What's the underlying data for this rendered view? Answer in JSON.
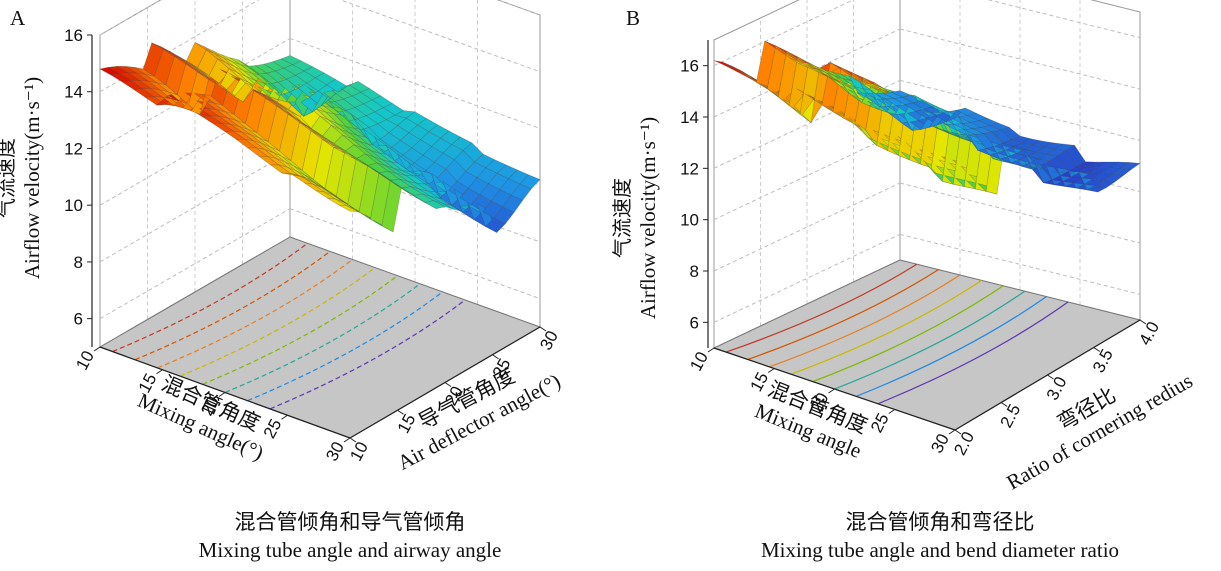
{
  "figure": {
    "panels": [
      {
        "label": "A",
        "caption_cn": "混合管倾角和导气管倾角",
        "caption_en": "Mixing tube angle and airway angle",
        "zlabel_cn": "气流速度",
        "zlabel_en": "Airflow velocity(m·s⁻¹)",
        "xlabel_cn": "混合管角度",
        "xlabel_en": "Mixing angle(°)",
        "ylabel_cn": "导气管角度",
        "ylabel_en": "Air deflector angle(°)",
        "x_ticks": [
          "10",
          "15",
          "20",
          "25",
          "30"
        ],
        "y_ticks": [
          "10",
          "15",
          "20",
          "25",
          "30"
        ],
        "z_ticks": [
          "6",
          "8",
          "10",
          "12",
          "14",
          "16"
        ]
      },
      {
        "label": "B",
        "caption_cn": "混合管倾角和弯径比",
        "caption_en": "Mixing tube angle and bend diameter ratio",
        "zlabel_cn": "气流速度",
        "zlabel_en": "Airflow velocity(m·s⁻¹)",
        "xlabel_cn": "混合管角度",
        "xlabel_en": "Mixing angle",
        "ylabel_cn": "弯径比",
        "ylabel_en": "Ratio of cornering redius",
        "x_ticks": [
          "10",
          "15",
          "20",
          "25",
          "30"
        ],
        "y_ticks": [
          "2.0",
          "2.5",
          "3.0",
          "3.5",
          "4.0"
        ],
        "z_ticks": [
          "6",
          "8",
          "10",
          "12",
          "14",
          "16"
        ]
      }
    ]
  },
  "chart_data": [
    {
      "type": "surface",
      "x": [
        10,
        15,
        20,
        25,
        30
      ],
      "y": [
        10,
        15,
        20,
        25,
        30
      ],
      "z": [
        [
          14.8,
          13.8,
          12.0,
          10.4,
          9.8
        ],
        [
          14.2,
          12.8,
          10.8,
          9.4,
          9.6
        ],
        [
          13.6,
          11.8,
          9.8,
          8.8,
          9.4
        ],
        [
          12.8,
          10.8,
          9.0,
          8.2,
          9.2
        ],
        [
          12.2,
          10.2,
          8.4,
          7.6,
          9.0
        ]
      ],
      "zlim": [
        5,
        16
      ]
    },
    {
      "type": "surface",
      "x": [
        10,
        15,
        20,
        25,
        30
      ],
      "y": [
        2.0,
        2.5,
        3.0,
        3.5,
        4.0
      ],
      "z": [
        [
          16.2,
          14.4,
          12.4,
          11.0,
          10.2
        ],
        [
          15.8,
          13.4,
          11.4,
          10.0,
          9.6
        ],
        [
          15.5,
          12.8,
          10.8,
          9.6,
          9.4
        ],
        [
          15.4,
          12.6,
          10.6,
          9.6,
          9.8
        ],
        [
          15.4,
          12.8,
          10.8,
          9.8,
          10.3
        ]
      ],
      "zlim": [
        5,
        17
      ]
    }
  ]
}
